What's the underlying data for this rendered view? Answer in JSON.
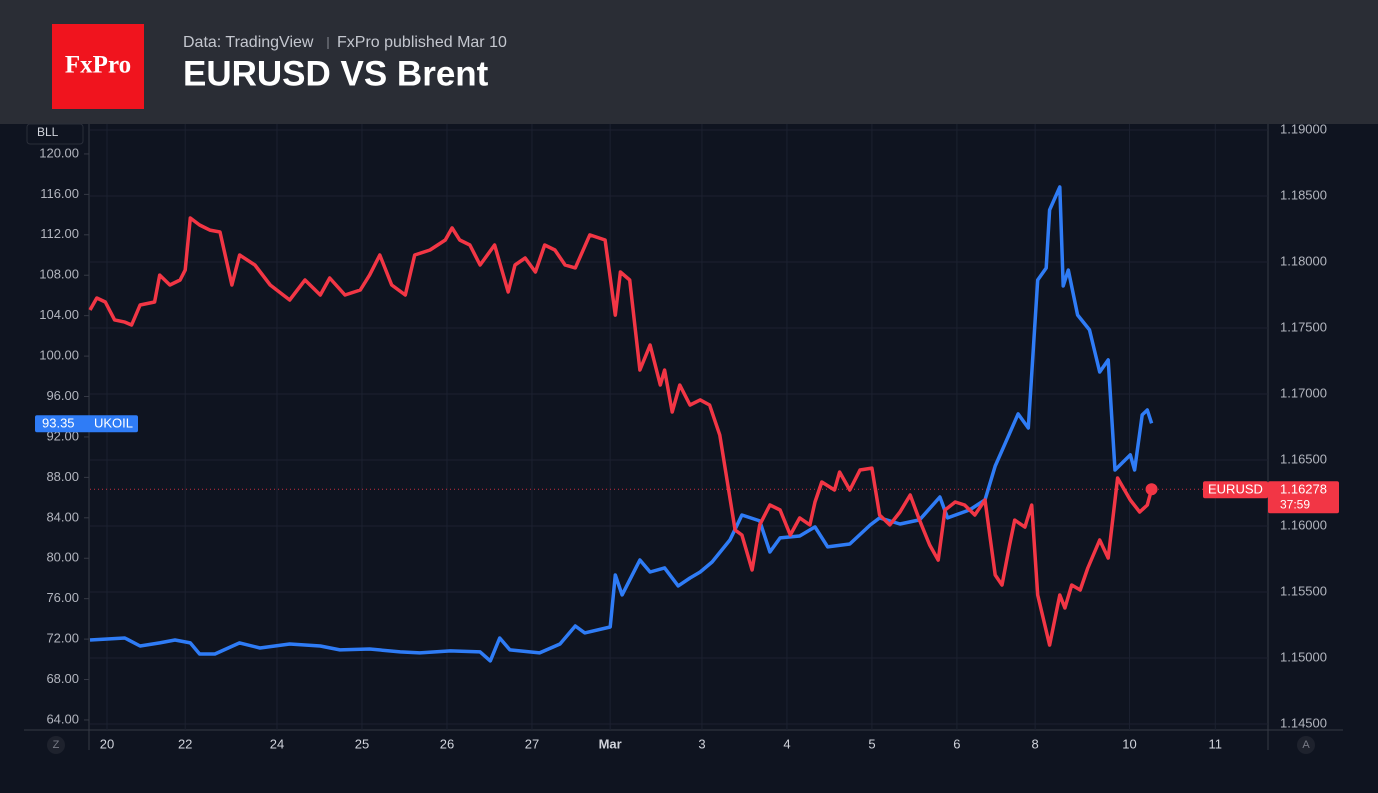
{
  "header": {
    "logo": "FxPro",
    "source": "Data: TradingView",
    "published": "FxPro published Mar 10"
  },
  "chart_data": {
    "type": "line",
    "title": "EURUSD VS Brent",
    "y_axis_label": "BLL",
    "countdown": "37:59",
    "axis_buttons": [
      "Z",
      "A"
    ],
    "grid": true,
    "xlim": [
      0,
      13.86
    ],
    "xticks": [
      {
        "value": 0.2,
        "label": "20"
      },
      {
        "value": 1.12,
        "label": "22"
      },
      {
        "value": 2.2,
        "label": "24"
      },
      {
        "value": 3.2,
        "label": "25"
      },
      {
        "value": 4.2,
        "label": "26"
      },
      {
        "value": 5.2,
        "label": "27"
      },
      {
        "value": 6.12,
        "label": "Mar"
      },
      {
        "value": 7.2,
        "label": "3"
      },
      {
        "value": 8.2,
        "label": "4"
      },
      {
        "value": 9.2,
        "label": "5"
      },
      {
        "value": 10.2,
        "label": "6"
      },
      {
        "value": 11.12,
        "label": "8"
      },
      {
        "value": 12.23,
        "label": "10"
      },
      {
        "value": 13.24,
        "label": "11"
      }
    ],
    "ylim": [
      63.6,
      122.37
    ],
    "yticks": [
      {
        "value": 64,
        "label": "64.00"
      },
      {
        "value": 68,
        "label": "68.00"
      },
      {
        "value": 72,
        "label": "72.00"
      },
      {
        "value": 76,
        "label": "76.00"
      },
      {
        "value": 80,
        "label": "80.00"
      },
      {
        "value": 84,
        "label": "84.00"
      },
      {
        "value": 88,
        "label": "88.00"
      },
      {
        "value": 92,
        "label": "92.00"
      },
      {
        "value": 96,
        "label": "96.00"
      },
      {
        "value": 100,
        "label": "100.00"
      },
      {
        "value": 104,
        "label": "104.00"
      },
      {
        "value": 108,
        "label": "108.00"
      },
      {
        "value": 112,
        "label": "112.00"
      },
      {
        "value": 116,
        "label": "116.00"
      },
      {
        "value": 120,
        "label": "120.00"
      }
    ],
    "y2lim": [
      1.145,
      1.19
    ],
    "y2ticks": [
      {
        "value": 1.145,
        "label": "1.14500"
      },
      {
        "value": 1.15,
        "label": "1.15000"
      },
      {
        "value": 1.155,
        "label": "1.15500"
      },
      {
        "value": 1.16,
        "label": "1.16000"
      },
      {
        "value": 1.165,
        "label": "1.16500"
      },
      {
        "value": 1.17,
        "label": "1.17000"
      },
      {
        "value": 1.175,
        "label": "1.17500"
      },
      {
        "value": 1.18,
        "label": "1.18000"
      },
      {
        "value": 1.185,
        "label": "1.18500"
      },
      {
        "value": 1.19,
        "label": "1.19000"
      }
    ],
    "series": [
      {
        "name": "UKOIL",
        "color": "#2f7cf6",
        "x": [
          0,
          0.41,
          0.59,
          0.82,
          1.0,
          1.18,
          1.29,
          1.47,
          1.76,
          2.0,
          2.35,
          2.71,
          2.94,
          3.29,
          3.65,
          3.88,
          4.24,
          4.59,
          4.71,
          4.82,
          4.94,
          5.29,
          5.53,
          5.71,
          5.82,
          6.12,
          6.18,
          6.26,
          6.47,
          6.59,
          6.76,
          6.92,
          7.06,
          7.18,
          7.32,
          7.53,
          7.67,
          7.88,
          8.0,
          8.12,
          8.35,
          8.53,
          8.68,
          8.94,
          9.18,
          9.29,
          9.53,
          9.76,
          10.0,
          10.09,
          10.35,
          10.53,
          10.65,
          10.76,
          10.92,
          11.04,
          11.15,
          11.25,
          11.29,
          11.41,
          11.45,
          11.51,
          11.62,
          11.76,
          11.88,
          11.98,
          12.06,
          12.24,
          12.29,
          12.38,
          12.44,
          12.49
        ],
        "values": [
          71.91,
          72.11,
          71.32,
          71.62,
          71.91,
          71.62,
          70.53,
          70.53,
          71.62,
          71.12,
          71.52,
          71.32,
          70.93,
          71.02,
          70.73,
          70.63,
          70.83,
          70.73,
          69.84,
          72.11,
          70.93,
          70.63,
          71.52,
          73.3,
          72.61,
          73.2,
          78.34,
          76.37,
          79.83,
          78.64,
          79.04,
          77.26,
          78.05,
          78.64,
          79.63,
          81.81,
          84.28,
          83.69,
          80.62,
          82.01,
          82.2,
          83.1,
          81.12,
          81.41,
          83.29,
          83.99,
          83.39,
          83.79,
          86.06,
          83.99,
          84.78,
          85.77,
          89.13,
          91.21,
          94.28,
          92.89,
          107.53,
          108.72,
          114.46,
          116.73,
          106.94,
          108.52,
          104.07,
          102.59,
          98.43,
          99.62,
          88.73,
          90.22,
          88.73,
          94.18,
          94.67,
          93.35
        ]
      },
      {
        "name": "EURUSD",
        "color": "#f23645",
        "axis": "y2",
        "x": [
          0,
          0.08,
          0.18,
          0.29,
          0.41,
          0.49,
          0.59,
          0.76,
          0.82,
          0.94,
          1.06,
          1.12,
          1.18,
          1.29,
          1.41,
          1.53,
          1.67,
          1.76,
          1.94,
          2.12,
          2.35,
          2.53,
          2.71,
          2.82,
          3.0,
          3.18,
          3.29,
          3.41,
          3.55,
          3.71,
          3.82,
          4.0,
          4.18,
          4.26,
          4.35,
          4.47,
          4.59,
          4.76,
          4.92,
          5.0,
          5.12,
          5.24,
          5.35,
          5.47,
          5.59,
          5.71,
          5.88,
          6.06,
          6.18,
          6.24,
          6.35,
          6.47,
          6.59,
          6.71,
          6.76,
          6.85,
          6.94,
          7.06,
          7.18,
          7.29,
          7.41,
          7.59,
          7.67,
          7.79,
          7.88,
          8.0,
          8.12,
          8.24,
          8.35,
          8.47,
          8.53,
          8.61,
          8.76,
          8.82,
          8.94,
          9.06,
          9.2,
          9.29,
          9.41,
          9.53,
          9.65,
          9.76,
          9.88,
          9.98,
          10.06,
          10.18,
          10.29,
          10.41,
          10.53,
          10.65,
          10.73,
          10.82,
          10.88,
          11.0,
          11.08,
          11.15,
          11.29,
          11.35,
          11.41,
          11.47,
          11.55,
          11.65,
          11.74,
          11.88,
          11.98,
          12.09,
          12.24,
          12.35,
          12.44,
          12.49
        ],
        "values": [
          1.17636,
          1.17727,
          1.17697,
          1.17561,
          1.17545,
          1.17523,
          1.17674,
          1.17697,
          1.17901,
          1.17826,
          1.17864,
          1.17939,
          1.18333,
          1.1828,
          1.18242,
          1.18227,
          1.17826,
          1.18053,
          1.17977,
          1.17826,
          1.17712,
          1.17864,
          1.1775,
          1.17879,
          1.1775,
          1.17788,
          1.17901,
          1.18053,
          1.17826,
          1.1775,
          1.18053,
          1.18091,
          1.18167,
          1.18258,
          1.18167,
          1.18129,
          1.17977,
          1.18129,
          1.17773,
          1.17977,
          1.1803,
          1.17924,
          1.18129,
          1.18091,
          1.17977,
          1.17955,
          1.18205,
          1.18167,
          1.17598,
          1.17924,
          1.17864,
          1.17182,
          1.17371,
          1.17068,
          1.17182,
          1.16864,
          1.17068,
          1.16917,
          1.16955,
          1.16917,
          1.16689,
          1.1597,
          1.15932,
          1.15667,
          1.16008,
          1.16159,
          1.16121,
          1.15932,
          1.16061,
          1.16008,
          1.16182,
          1.16333,
          1.16273,
          1.16409,
          1.16273,
          1.16424,
          1.16439,
          1.16083,
          1.16008,
          1.16106,
          1.16235,
          1.16045,
          1.15856,
          1.15742,
          1.16121,
          1.16182,
          1.16159,
          1.16083,
          1.16197,
          1.15629,
          1.15553,
          1.15856,
          1.16045,
          1.15992,
          1.16159,
          1.15477,
          1.15098,
          1.15288,
          1.15477,
          1.15379,
          1.15553,
          1.15515,
          1.15682,
          1.15894,
          1.15757,
          1.16364,
          1.16197,
          1.16106,
          1.16159,
          1.16278
        ]
      }
    ]
  }
}
